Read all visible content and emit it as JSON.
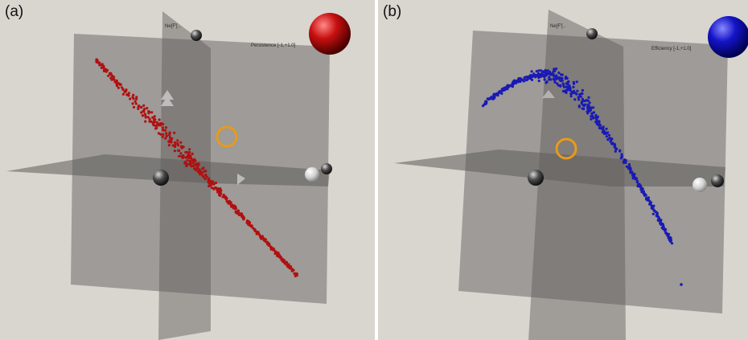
{
  "figure": {
    "panels": [
      {
        "label": "(a)",
        "point_color": "#b01010",
        "sphere_color": "#c81010",
        "axis_labels": {
          "y": "Ne[F'[..",
          "z": "Persistence [-1,+1.0]"
        }
      },
      {
        "label": "(b)",
        "point_color": "#1a1ab4",
        "sphere_color": "#1414c8",
        "axis_labels": {
          "y": "Ne[F'[..",
          "z": "Efficiency [-1,+1.0]"
        }
      }
    ],
    "colors": {
      "background": "#d9d6d0",
      "plane": "#6e6c69",
      "cursor_ring": "#e89a1c"
    }
  }
}
